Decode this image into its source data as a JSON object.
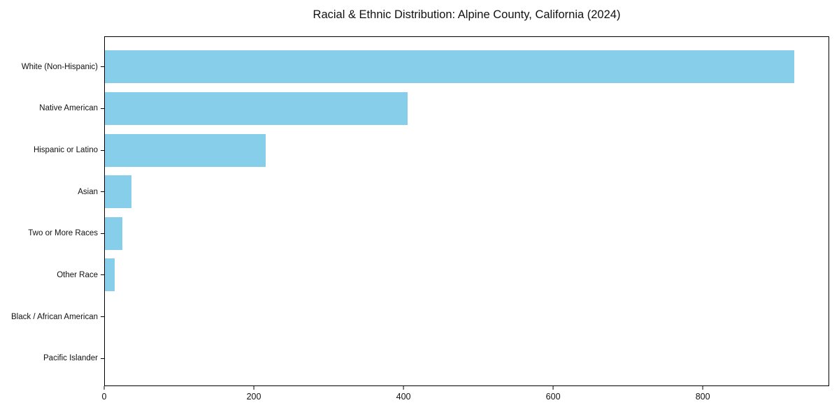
{
  "chart_data": {
    "type": "bar",
    "orientation": "horizontal",
    "title": "Racial & Ethnic Distribution: Alpine County, California (2024)",
    "categories": [
      "White (Non-Hispanic)",
      "Native American",
      "Hispanic or Latino",
      "Asian",
      "Two or More Races",
      "Other Race",
      "Black / African American",
      "Pacific Islander"
    ],
    "values": [
      923,
      405,
      215,
      36,
      23,
      13,
      0,
      0
    ],
    "xlabel": "",
    "ylabel": "",
    "x_ticks": [
      0,
      200,
      400,
      600,
      800
    ],
    "xlim": [
      0,
      969
    ],
    "grid": false,
    "legend_position": "none",
    "bar_color": "#87CEEB",
    "background_color": "#ffffff",
    "frame_color": "#000000"
  }
}
